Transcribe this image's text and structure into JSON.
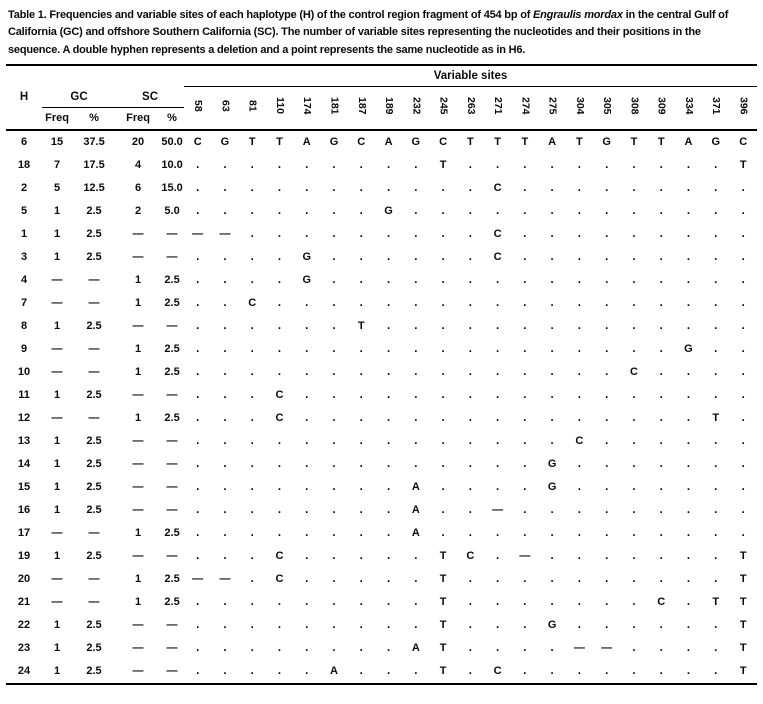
{
  "caption": {
    "prefix": "Table 1. Frequencies and variable sites of each haplotype (H) of the control region fragment of 454 bp of ",
    "species": "Engraulis mordax",
    "suffix": " in the central Gulf of California (GC) and offshore Southern California (SC). The number of variable sites representing the nucleotides and their positions in the sequence. A double hyphen represents a deletion and a point represents the same nucleotide as in H6."
  },
  "table": {
    "variable_sites_label": "Variable sites",
    "col_h": "H",
    "col_gc": "GC",
    "col_sc": "SC",
    "sub_headers": [
      "Freq",
      "%",
      "Freq",
      "%"
    ],
    "sites": [
      "58",
      "63",
      "81",
      "110",
      "174",
      "181",
      "187",
      "189",
      "232",
      "245",
      "263",
      "271",
      "274",
      "275",
      "304",
      "305",
      "308",
      "309",
      "334",
      "371",
      "396"
    ],
    "rows": [
      {
        "h": "6",
        "gc_freq": "15",
        "gc_pct": "37.5",
        "sc_freq": "20",
        "sc_pct": "50.0",
        "seq": [
          "C",
          "G",
          "T",
          "T",
          "A",
          "G",
          "C",
          "A",
          "G",
          "C",
          "T",
          "T",
          "T",
          "A",
          "T",
          "G",
          "T",
          "T",
          "A",
          "G",
          "C"
        ]
      },
      {
        "h": "18",
        "gc_freq": "7",
        "gc_pct": "17.5",
        "sc_freq": "4",
        "sc_pct": "10.0",
        "seq": [
          ".",
          ".",
          ".",
          ".",
          ".",
          ".",
          ".",
          ".",
          ".",
          "T",
          ".",
          ".",
          ".",
          ".",
          ".",
          ".",
          ".",
          ".",
          ".",
          ".",
          "T"
        ]
      },
      {
        "h": "2",
        "gc_freq": "5",
        "gc_pct": "12.5",
        "sc_freq": "6",
        "sc_pct": "15.0",
        "seq": [
          ".",
          ".",
          ".",
          ".",
          ".",
          ".",
          ".",
          ".",
          ".",
          ".",
          ".",
          "C",
          ".",
          ".",
          ".",
          ".",
          ".",
          ".",
          ".",
          ".",
          "."
        ]
      },
      {
        "h": "5",
        "gc_freq": "1",
        "gc_pct": "2.5",
        "sc_freq": "2",
        "sc_pct": "5.0",
        "seq": [
          ".",
          ".",
          ".",
          ".",
          ".",
          ".",
          ".",
          "G",
          ".",
          ".",
          ".",
          ".",
          ".",
          ".",
          ".",
          ".",
          ".",
          ".",
          ".",
          ".",
          "."
        ]
      },
      {
        "h": "1",
        "gc_freq": "1",
        "gc_pct": "2.5",
        "sc_freq": "—",
        "sc_pct": "—",
        "seq": [
          "—",
          "—",
          ".",
          ".",
          ".",
          ".",
          ".",
          ".",
          ".",
          ".",
          ".",
          "C",
          ".",
          ".",
          ".",
          ".",
          ".",
          ".",
          ".",
          ".",
          "."
        ]
      },
      {
        "h": "3",
        "gc_freq": "1",
        "gc_pct": "2.5",
        "sc_freq": "—",
        "sc_pct": "—",
        "seq": [
          ".",
          ".",
          ".",
          ".",
          "G",
          ".",
          ".",
          ".",
          ".",
          ".",
          ".",
          "C",
          ".",
          ".",
          ".",
          ".",
          ".",
          ".",
          ".",
          ".",
          "."
        ]
      },
      {
        "h": "4",
        "gc_freq": "—",
        "gc_pct": "—",
        "sc_freq": "1",
        "sc_pct": "2.5",
        "seq": [
          ".",
          ".",
          ".",
          ".",
          "G",
          ".",
          ".",
          ".",
          ".",
          ".",
          ".",
          ".",
          ".",
          ".",
          ".",
          ".",
          ".",
          ".",
          ".",
          ".",
          "."
        ]
      },
      {
        "h": "7",
        "gc_freq": "—",
        "gc_pct": "—",
        "sc_freq": "1",
        "sc_pct": "2.5",
        "seq": [
          ".",
          ".",
          "C",
          ".",
          ".",
          ".",
          ".",
          ".",
          ".",
          ".",
          ".",
          ".",
          ".",
          ".",
          ".",
          ".",
          ".",
          ".",
          ".",
          ".",
          "."
        ]
      },
      {
        "h": "8",
        "gc_freq": "1",
        "gc_pct": "2.5",
        "sc_freq": "—",
        "sc_pct": "—",
        "seq": [
          ".",
          ".",
          ".",
          ".",
          ".",
          ".",
          "T",
          ".",
          ".",
          ".",
          ".",
          ".",
          ".",
          ".",
          ".",
          ".",
          ".",
          ".",
          ".",
          ".",
          "."
        ]
      },
      {
        "h": "9",
        "gc_freq": "—",
        "gc_pct": "—",
        "sc_freq": "1",
        "sc_pct": "2.5",
        "seq": [
          ".",
          ".",
          ".",
          ".",
          ".",
          ".",
          ".",
          ".",
          ".",
          ".",
          ".",
          ".",
          ".",
          ".",
          ".",
          ".",
          ".",
          ".",
          "G",
          ".",
          "."
        ]
      },
      {
        "h": "10",
        "gc_freq": "—",
        "gc_pct": "—",
        "sc_freq": "1",
        "sc_pct": "2.5",
        "seq": [
          ".",
          ".",
          ".",
          ".",
          ".",
          ".",
          ".",
          ".",
          ".",
          ".",
          ".",
          ".",
          ".",
          ".",
          ".",
          ".",
          "C",
          ".",
          ".",
          ".",
          "."
        ]
      },
      {
        "h": "11",
        "gc_freq": "1",
        "gc_pct": "2.5",
        "sc_freq": "—",
        "sc_pct": "—",
        "seq": [
          ".",
          ".",
          ".",
          "C",
          ".",
          ".",
          ".",
          ".",
          ".",
          ".",
          ".",
          ".",
          ".",
          ".",
          ".",
          ".",
          ".",
          ".",
          ".",
          ".",
          "."
        ]
      },
      {
        "h": "12",
        "gc_freq": "—",
        "gc_pct": "—",
        "sc_freq": "1",
        "sc_pct": "2.5",
        "seq": [
          ".",
          ".",
          ".",
          "C",
          ".",
          ".",
          ".",
          ".",
          ".",
          ".",
          ".",
          ".",
          ".",
          ".",
          ".",
          ".",
          ".",
          ".",
          ".",
          "T",
          "."
        ]
      },
      {
        "h": "13",
        "gc_freq": "1",
        "gc_pct": "2.5",
        "sc_freq": "—",
        "sc_pct": "—",
        "seq": [
          ".",
          ".",
          ".",
          ".",
          ".",
          ".",
          ".",
          ".",
          ".",
          ".",
          ".",
          ".",
          ".",
          ".",
          "C",
          ".",
          ".",
          ".",
          ".",
          ".",
          "."
        ]
      },
      {
        "h": "14",
        "gc_freq": "1",
        "gc_pct": "2.5",
        "sc_freq": "—",
        "sc_pct": "—",
        "seq": [
          ".",
          ".",
          ".",
          ".",
          ".",
          ".",
          ".",
          ".",
          ".",
          ".",
          ".",
          ".",
          ".",
          "G",
          ".",
          ".",
          ".",
          ".",
          ".",
          ".",
          "."
        ]
      },
      {
        "h": "15",
        "gc_freq": "1",
        "gc_pct": "2.5",
        "sc_freq": "—",
        "sc_pct": "—",
        "seq": [
          ".",
          ".",
          ".",
          ".",
          ".",
          ".",
          ".",
          ".",
          "A",
          ".",
          ".",
          ".",
          ".",
          "G",
          ".",
          ".",
          ".",
          ".",
          ".",
          ".",
          "."
        ]
      },
      {
        "h": "16",
        "gc_freq": "1",
        "gc_pct": "2.5",
        "sc_freq": "—",
        "sc_pct": "—",
        "seq": [
          ".",
          ".",
          ".",
          ".",
          ".",
          ".",
          ".",
          ".",
          "A",
          ".",
          ".",
          "—",
          ".",
          ".",
          ".",
          ".",
          ".",
          ".",
          ".",
          ".",
          "."
        ]
      },
      {
        "h": "17",
        "gc_freq": "—",
        "gc_pct": "—",
        "sc_freq": "1",
        "sc_pct": "2.5",
        "seq": [
          ".",
          ".",
          ".",
          ".",
          ".",
          ".",
          ".",
          ".",
          "A",
          ".",
          ".",
          ".",
          ".",
          ".",
          ".",
          ".",
          ".",
          ".",
          ".",
          ".",
          "."
        ]
      },
      {
        "h": "19",
        "gc_freq": "1",
        "gc_pct": "2.5",
        "sc_freq": "—",
        "sc_pct": "—",
        "seq": [
          ".",
          ".",
          ".",
          "C",
          ".",
          ".",
          ".",
          ".",
          ".",
          "T",
          "C",
          ".",
          "—",
          ".",
          ".",
          ".",
          ".",
          ".",
          ".",
          ".",
          "T"
        ]
      },
      {
        "h": "20",
        "gc_freq": "—",
        "gc_pct": "—",
        "sc_freq": "1",
        "sc_pct": "2.5",
        "seq": [
          "—",
          "—",
          ".",
          "C",
          ".",
          ".",
          ".",
          ".",
          ".",
          "T",
          ".",
          ".",
          ".",
          ".",
          ".",
          ".",
          ".",
          ".",
          ".",
          ".",
          "T"
        ]
      },
      {
        "h": "21",
        "gc_freq": "—",
        "gc_pct": "—",
        "sc_freq": "1",
        "sc_pct": "2.5",
        "seq": [
          ".",
          ".",
          ".",
          ".",
          ".",
          ".",
          ".",
          ".",
          ".",
          "T",
          ".",
          ".",
          ".",
          ".",
          ".",
          ".",
          ".",
          "C",
          ".",
          "T",
          "T"
        ]
      },
      {
        "h": "22",
        "gc_freq": "1",
        "gc_pct": "2.5",
        "sc_freq": "—",
        "sc_pct": "—",
        "seq": [
          ".",
          ".",
          ".",
          ".",
          ".",
          ".",
          ".",
          ".",
          ".",
          "T",
          ".",
          ".",
          ".",
          "G",
          ".",
          ".",
          ".",
          ".",
          ".",
          ".",
          "T"
        ]
      },
      {
        "h": "23",
        "gc_freq": "1",
        "gc_pct": "2.5",
        "sc_freq": "—",
        "sc_pct": "—",
        "seq": [
          ".",
          ".",
          ".",
          ".",
          ".",
          ".",
          ".",
          ".",
          "A",
          "T",
          ".",
          ".",
          ".",
          ".",
          "—",
          "—",
          ".",
          ".",
          ".",
          ".",
          "T"
        ]
      },
      {
        "h": "24",
        "gc_freq": "1",
        "gc_pct": "2.5",
        "sc_freq": "—",
        "sc_pct": "—",
        "seq": [
          ".",
          ".",
          ".",
          ".",
          ".",
          "A",
          ".",
          ".",
          ".",
          "T",
          ".",
          "C",
          ".",
          ".",
          ".",
          ".",
          ".",
          ".",
          ".",
          ".",
          "T"
        ]
      }
    ]
  }
}
